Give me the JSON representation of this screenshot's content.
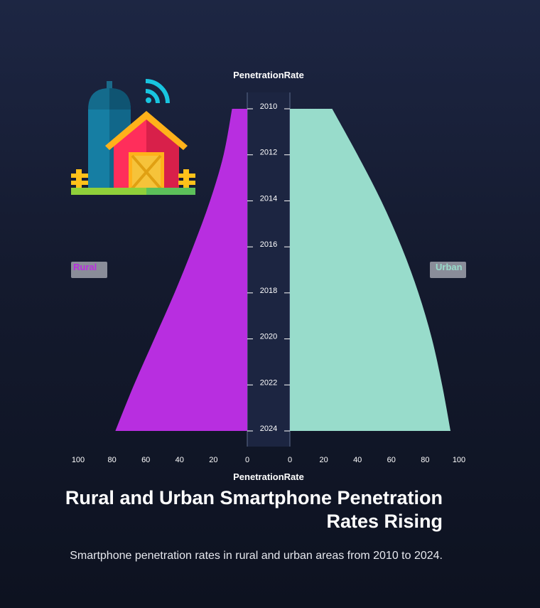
{
  "chart_data": {
    "type": "area",
    "layout": "butterfly",
    "title": "Rural and Urban Smartphone Penetration Rates Rising",
    "subtitle": "Smartphone penetration rates in rural and urban areas from 2010 to 2024.",
    "top_axis_label": "PenetrationRate",
    "bottom_axis_label": "PenetrationRate",
    "years": [
      2010,
      2012,
      2014,
      2016,
      2018,
      2020,
      2022,
      2024
    ],
    "year_ticks": [
      "2010",
      "2012",
      "2014",
      "2016",
      "2018",
      "2020",
      "2022",
      "2024"
    ],
    "xlim": [
      0,
      100
    ],
    "x_ticks_left": [
      "100",
      "80",
      "60",
      "40",
      "20",
      "0"
    ],
    "x_ticks_right": [
      "0",
      "20",
      "40",
      "60",
      "80",
      "100"
    ],
    "series": [
      {
        "name": "Rural",
        "side": "left",
        "color": "#b82ee0",
        "values": [
          9,
          14,
          22,
          32,
          43,
          55,
          67,
          78
        ]
      },
      {
        "name": "Urban",
        "side": "right",
        "color": "#98dccb",
        "values": [
          25,
          40,
          54,
          66,
          76,
          84,
          90,
          95
        ]
      }
    ],
    "legend": [
      {
        "label": "Rural",
        "color": "#b82ee0",
        "placement": "left"
      },
      {
        "label": "Urban",
        "color": "#98dccb",
        "placement": "right"
      }
    ]
  },
  "illustration": {
    "name": "farm-with-wifi"
  }
}
